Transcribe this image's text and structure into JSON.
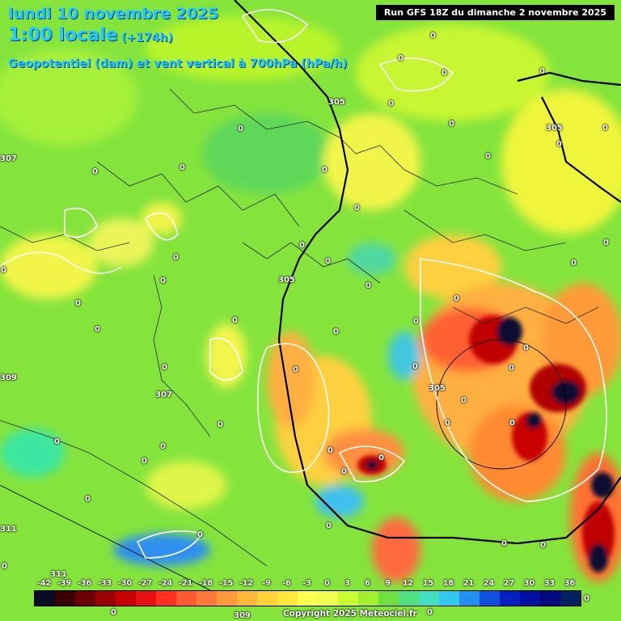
{
  "header": {
    "date_line": "lundi 10 novembre 2025",
    "time_line": "1:00 locale",
    "lead_time": "(+174h)",
    "parameter": "Geopotentiel (dam) et vent vertical à 700hPa (hPa/h)",
    "run_info": "Run GFS 18Z du dimanche 2 novembre 2025"
  },
  "contour_labels": {
    "zero": "0",
    "values": [
      "305",
      "307",
      "309",
      "311",
      "305",
      "305",
      "307",
      "309",
      "311",
      "305"
    ]
  },
  "scale": {
    "ticks": [
      "-42",
      "-39",
      "-36",
      "-33",
      "-30",
      "-27",
      "-24",
      "-21",
      "-18",
      "-15",
      "-12",
      "-9",
      "-6",
      "-3",
      "0",
      "3",
      "6",
      "9",
      "12",
      "15",
      "18",
      "21",
      "24",
      "27",
      "30",
      "33",
      "36"
    ],
    "colors": [
      "#0a0a22",
      "#3a0000",
      "#6b0000",
      "#9a0000",
      "#c80000",
      "#e81010",
      "#ff3020",
      "#ff5a30",
      "#ff7a3a",
      "#ff9a3a",
      "#ffb83a",
      "#ffd23a",
      "#ffe83a",
      "#ffff50",
      "#f0ff50",
      "#c8ff30",
      "#a0f030",
      "#70e040",
      "#50e080",
      "#40e0c0",
      "#30c8f0",
      "#2090f0",
      "#1050e0",
      "#0020c0",
      "#0010a0",
      "#000880",
      "#002060"
    ]
  },
  "copyright": "Copyright 2025 Meteociel.fr"
}
